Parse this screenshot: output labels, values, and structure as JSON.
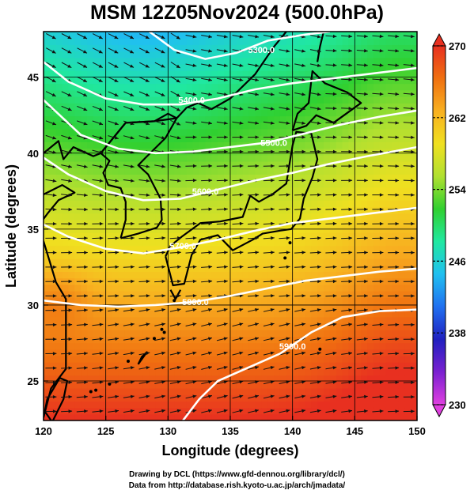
{
  "title": "MSM 12Z05Nov2024 (500.0hPa)",
  "chart_data": {
    "type": "map",
    "xlabel": "Longitude (degrees)",
    "ylabel": "Latitude  (degrees)",
    "xlim": [
      120,
      150
    ],
    "ylim": [
      22.4,
      48
    ],
    "xticks": [
      120,
      125,
      130,
      135,
      140,
      145,
      150
    ],
    "yticks": [
      25,
      30,
      35,
      40,
      45
    ],
    "xtick_labels": [
      "120",
      "125",
      "130",
      "135",
      "140",
      "145",
      "150"
    ],
    "ytick_labels": [
      "25",
      "30",
      "35",
      "40",
      "45"
    ],
    "grid": true,
    "field": "temperature",
    "colorbar": {
      "min": 230,
      "max": 270,
      "ticks": [
        230,
        238,
        246,
        254,
        262,
        270
      ],
      "tick_labels": [
        "230",
        "238",
        "246",
        "254",
        "262",
        "270"
      ],
      "extend": "both",
      "colors": [
        "#e040e0",
        "#7a20d0",
        "#2020c0",
        "#2070f0",
        "#20c0f0",
        "#20e8a0",
        "#30d030",
        "#b0e030",
        "#f0e020",
        "#f8b020",
        "#f07010",
        "#e83020"
      ]
    },
    "contours": [
      {
        "label": "5300.0",
        "label_lon": 137.5,
        "label_lat": 46.8,
        "path": [
          [
            128.5,
            48
          ],
          [
            130.5,
            46.8
          ],
          [
            133,
            46.2
          ],
          [
            135.5,
            46.6
          ],
          [
            138,
            47.4
          ],
          [
            141,
            47.8
          ],
          [
            143,
            48
          ]
        ]
      },
      {
        "label": "5400.0",
        "label_lon": 131.9,
        "label_lat": 43.5,
        "path": [
          [
            120,
            46
          ],
          [
            122,
            44.7
          ],
          [
            125,
            43.6
          ],
          [
            128,
            43.2
          ],
          [
            131,
            43.2
          ],
          [
            134,
            43.6
          ],
          [
            137,
            44.2
          ],
          [
            140,
            44.6
          ],
          [
            143,
            44.9
          ],
          [
            146,
            45.2
          ],
          [
            150,
            45.6
          ]
        ]
      },
      {
        "label": "5500.0",
        "label_lon": 138.5,
        "label_lat": 40.7,
        "path": [
          [
            120,
            43.5
          ],
          [
            123,
            41.2
          ],
          [
            126,
            40.3
          ],
          [
            129,
            40
          ],
          [
            132,
            40.1
          ],
          [
            135,
            40.4
          ],
          [
            138,
            40.7
          ],
          [
            141,
            41.3
          ],
          [
            144,
            41.9
          ],
          [
            147,
            42.4
          ],
          [
            150,
            42.8
          ]
        ]
      },
      {
        "label": "5600.0",
        "label_lon": 133.0,
        "label_lat": 37.5,
        "path": [
          [
            120,
            39.7
          ],
          [
            122,
            38.6
          ],
          [
            125,
            37.5
          ],
          [
            128,
            36.9
          ],
          [
            131,
            37
          ],
          [
            134,
            37.6
          ],
          [
            137,
            38.2
          ],
          [
            140,
            38.7
          ],
          [
            143,
            39.3
          ],
          [
            146,
            39.8
          ],
          [
            150,
            40.4
          ]
        ]
      },
      {
        "label": "5700.0",
        "label_lon": 131.2,
        "label_lat": 33.9,
        "path": [
          [
            120,
            35.3
          ],
          [
            122,
            34.5
          ],
          [
            125,
            33.7
          ],
          [
            128,
            33.4
          ],
          [
            131,
            33.8
          ],
          [
            134,
            34.3
          ],
          [
            137,
            34.9
          ],
          [
            140,
            35.4
          ],
          [
            143,
            35.7
          ],
          [
            146,
            36
          ],
          [
            150,
            36.4
          ]
        ]
      },
      {
        "label": "5800.0",
        "label_lon": 132.2,
        "label_lat": 30.2,
        "path": [
          [
            120,
            30.3
          ],
          [
            123,
            30
          ],
          [
            126,
            29.9
          ],
          [
            129,
            30
          ],
          [
            132,
            30.2
          ],
          [
            135,
            30.6
          ],
          [
            138,
            31.1
          ],
          [
            141,
            31.6
          ],
          [
            144,
            31.9
          ],
          [
            147,
            32.2
          ],
          [
            150,
            32.4
          ]
        ]
      },
      {
        "label": "5900.0",
        "label_lon": 140.0,
        "label_lat": 27.3,
        "path": [
          [
            131.2,
            22.4
          ],
          [
            132.5,
            23.8
          ],
          [
            134,
            25
          ],
          [
            136.5,
            25.9
          ],
          [
            139,
            26.8
          ],
          [
            141.5,
            28.2
          ],
          [
            144,
            29.2
          ],
          [
            147,
            29.6
          ],
          [
            150,
            29.7
          ]
        ]
      }
    ]
  },
  "credits": {
    "line1": "Drawing by DCL (https://www.gfd-dennou.org/library/dcl/)",
    "line2": "Data from http://database.rish.kyoto-u.ac.jp/arch/jmadata/"
  }
}
